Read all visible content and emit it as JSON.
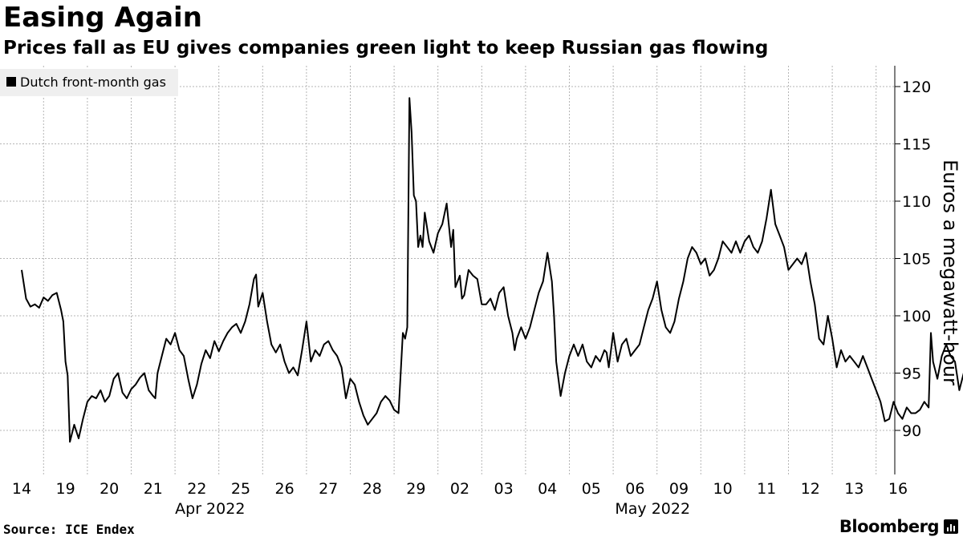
{
  "chart_data": {
    "type": "line",
    "title": "Easing Again",
    "subtitle": "Prices fall as EU gives companies green light to keep Russian gas flowing",
    "ylabel": "Euros a megawatt-hour",
    "ylim": [
      87,
      122
    ],
    "yticks": [
      90,
      95,
      100,
      105,
      110,
      115,
      120
    ],
    "grid": true,
    "legend_position": "top-left",
    "day_labels": [
      "14",
      "19",
      "20",
      "21",
      "22",
      "25",
      "26",
      "27",
      "28",
      "29",
      "02",
      "03",
      "04",
      "05",
      "06",
      "09",
      "10",
      "11",
      "12",
      "13",
      "16"
    ],
    "month_labels": [
      "Apr 2022",
      "May 2022"
    ],
    "series": [
      {
        "name": "Dutch front-month gas",
        "color": "#000000",
        "points": [
          [
            0.0,
            104.0
          ],
          [
            0.1,
            101.5
          ],
          [
            0.2,
            100.8
          ],
          [
            0.3,
            101.0
          ],
          [
            0.4,
            100.7
          ],
          [
            0.5,
            101.6
          ],
          [
            0.6,
            101.3
          ],
          [
            0.7,
            101.8
          ],
          [
            0.8,
            102.0
          ],
          [
            0.9,
            100.5
          ],
          [
            0.95,
            99.5
          ],
          [
            1.0,
            96.0
          ],
          [
            1.05,
            94.8
          ],
          [
            1.1,
            89.0
          ],
          [
            1.2,
            90.5
          ],
          [
            1.3,
            89.3
          ],
          [
            1.4,
            91.0
          ],
          [
            1.5,
            92.5
          ],
          [
            1.6,
            93.0
          ],
          [
            1.7,
            92.8
          ],
          [
            1.8,
            93.5
          ],
          [
            1.9,
            92.5
          ],
          [
            2.0,
            93.0
          ],
          [
            2.1,
            94.5
          ],
          [
            2.2,
            95.0
          ],
          [
            2.3,
            93.3
          ],
          [
            2.4,
            92.8
          ],
          [
            2.5,
            93.6
          ],
          [
            2.6,
            94.0
          ],
          [
            2.7,
            94.6
          ],
          [
            2.8,
            95.0
          ],
          [
            2.9,
            93.5
          ],
          [
            3.0,
            93.0
          ],
          [
            3.05,
            92.8
          ],
          [
            3.1,
            95.0
          ],
          [
            3.2,
            96.5
          ],
          [
            3.3,
            98.0
          ],
          [
            3.4,
            97.5
          ],
          [
            3.5,
            98.5
          ],
          [
            3.6,
            97.0
          ],
          [
            3.7,
            96.5
          ],
          [
            3.8,
            94.5
          ],
          [
            3.9,
            92.8
          ],
          [
            4.0,
            94.0
          ],
          [
            4.1,
            95.8
          ],
          [
            4.2,
            97.0
          ],
          [
            4.3,
            96.3
          ],
          [
            4.4,
            97.8
          ],
          [
            4.5,
            96.9
          ],
          [
            4.6,
            97.8
          ],
          [
            4.7,
            98.5
          ],
          [
            4.8,
            99.0
          ],
          [
            4.9,
            99.3
          ],
          [
            5.0,
            98.5
          ],
          [
            5.1,
            99.5
          ],
          [
            5.2,
            101.0
          ],
          [
            5.3,
            103.2
          ],
          [
            5.35,
            103.6
          ],
          [
            5.4,
            100.8
          ],
          [
            5.5,
            102.0
          ],
          [
            5.6,
            99.5
          ],
          [
            5.7,
            97.5
          ],
          [
            5.8,
            96.8
          ],
          [
            5.9,
            97.5
          ],
          [
            6.0,
            96.0
          ],
          [
            6.1,
            95.0
          ],
          [
            6.2,
            95.5
          ],
          [
            6.3,
            94.8
          ],
          [
            6.4,
            97.0
          ],
          [
            6.5,
            99.5
          ],
          [
            6.6,
            96.0
          ],
          [
            6.7,
            97.0
          ],
          [
            6.8,
            96.5
          ],
          [
            6.9,
            97.5
          ],
          [
            7.0,
            97.8
          ],
          [
            7.1,
            97.0
          ],
          [
            7.2,
            96.5
          ],
          [
            7.3,
            95.5
          ],
          [
            7.4,
            92.8
          ],
          [
            7.5,
            94.5
          ],
          [
            7.6,
            94.0
          ],
          [
            7.7,
            92.5
          ],
          [
            7.8,
            91.3
          ],
          [
            7.9,
            90.5
          ],
          [
            8.0,
            91.0
          ],
          [
            8.1,
            91.5
          ],
          [
            8.2,
            92.5
          ],
          [
            8.3,
            93.0
          ],
          [
            8.4,
            92.6
          ],
          [
            8.5,
            91.8
          ],
          [
            8.6,
            91.5
          ],
          [
            8.7,
            98.5
          ],
          [
            8.75,
            98.0
          ],
          [
            8.8,
            99.0
          ],
          [
            8.85,
            119.0
          ],
          [
            8.9,
            116.0
          ],
          [
            8.95,
            110.5
          ],
          [
            9.0,
            110.0
          ],
          [
            9.05,
            106.0
          ],
          [
            9.1,
            107.0
          ],
          [
            9.15,
            106.0
          ],
          [
            9.2,
            109.0
          ],
          [
            9.3,
            106.5
          ],
          [
            9.4,
            105.5
          ],
          [
            9.5,
            107.2
          ],
          [
            9.6,
            108.0
          ],
          [
            9.7,
            109.8
          ],
          [
            9.8,
            106.0
          ],
          [
            9.85,
            107.5
          ],
          [
            9.9,
            102.5
          ],
          [
            10.0,
            103.5
          ],
          [
            10.05,
            101.5
          ],
          [
            10.1,
            101.8
          ],
          [
            10.2,
            104.0
          ],
          [
            10.3,
            103.5
          ],
          [
            10.4,
            103.2
          ],
          [
            10.5,
            101.0
          ],
          [
            10.6,
            101.0
          ],
          [
            10.7,
            101.5
          ],
          [
            10.8,
            100.5
          ],
          [
            10.9,
            102.0
          ],
          [
            11.0,
            102.5
          ],
          [
            11.1,
            100.0
          ],
          [
            11.2,
            98.5
          ],
          [
            11.25,
            97.0
          ],
          [
            11.3,
            98.0
          ],
          [
            11.4,
            99.0
          ],
          [
            11.5,
            98.0
          ],
          [
            11.6,
            99.0
          ],
          [
            11.7,
            100.5
          ],
          [
            11.8,
            102.0
          ],
          [
            11.9,
            103.0
          ],
          [
            12.0,
            105.5
          ],
          [
            12.1,
            103.0
          ],
          [
            12.15,
            100.0
          ],
          [
            12.2,
            96.0
          ],
          [
            12.3,
            93.0
          ],
          [
            12.4,
            95.0
          ],
          [
            12.5,
            96.5
          ],
          [
            12.6,
            97.5
          ],
          [
            12.7,
            96.5
          ],
          [
            12.8,
            97.5
          ],
          [
            12.9,
            96.0
          ],
          [
            13.0,
            95.5
          ],
          [
            13.1,
            96.5
          ],
          [
            13.2,
            96.0
          ],
          [
            13.3,
            97.0
          ],
          [
            13.35,
            96.8
          ],
          [
            13.4,
            95.5
          ],
          [
            13.5,
            98.5
          ],
          [
            13.6,
            96.0
          ],
          [
            13.7,
            97.5
          ],
          [
            13.8,
            98.0
          ],
          [
            13.9,
            96.5
          ],
          [
            14.0,
            97.0
          ],
          [
            14.1,
            97.5
          ],
          [
            14.2,
            99.0
          ],
          [
            14.3,
            100.5
          ],
          [
            14.4,
            101.5
          ],
          [
            14.5,
            103.0
          ],
          [
            14.6,
            100.5
          ],
          [
            14.7,
            99.0
          ],
          [
            14.8,
            98.5
          ],
          [
            14.9,
            99.5
          ],
          [
            15.0,
            101.5
          ],
          [
            15.1,
            103.0
          ],
          [
            15.2,
            105.0
          ],
          [
            15.3,
            106.0
          ],
          [
            15.4,
            105.5
          ],
          [
            15.5,
            104.5
          ],
          [
            15.6,
            105.0
          ],
          [
            15.7,
            103.5
          ],
          [
            15.8,
            104.0
          ],
          [
            15.9,
            105.0
          ],
          [
            16.0,
            106.5
          ],
          [
            16.1,
            106.0
          ],
          [
            16.2,
            105.5
          ],
          [
            16.3,
            106.5
          ],
          [
            16.4,
            105.5
          ],
          [
            16.5,
            106.5
          ],
          [
            16.6,
            107.0
          ],
          [
            16.7,
            106.0
          ],
          [
            16.8,
            105.5
          ],
          [
            16.9,
            106.5
          ],
          [
            17.0,
            108.5
          ],
          [
            17.1,
            111.0
          ],
          [
            17.2,
            108.0
          ],
          [
            17.3,
            107.0
          ],
          [
            17.4,
            106.0
          ],
          [
            17.5,
            104.0
          ],
          [
            17.6,
            104.5
          ],
          [
            17.7,
            105.0
          ],
          [
            17.8,
            104.5
          ],
          [
            17.9,
            105.5
          ],
          [
            18.0,
            103.0
          ],
          [
            18.1,
            101.0
          ],
          [
            18.2,
            98.0
          ],
          [
            18.3,
            97.5
          ],
          [
            18.4,
            100.0
          ],
          [
            18.5,
            98.0
          ],
          [
            18.6,
            95.5
          ],
          [
            18.7,
            97.0
          ],
          [
            18.8,
            96.0
          ],
          [
            18.9,
            96.5
          ],
          [
            19.0,
            96.0
          ],
          [
            19.1,
            95.5
          ],
          [
            19.2,
            96.5
          ],
          [
            19.3,
            95.5
          ],
          [
            19.4,
            94.5
          ],
          [
            19.5,
            93.5
          ],
          [
            19.6,
            92.5
          ],
          [
            19.7,
            90.8
          ],
          [
            19.8,
            91.0
          ],
          [
            19.9,
            92.5
          ],
          [
            20.0,
            91.5
          ],
          [
            20.1,
            91.0
          ],
          [
            20.2,
            92.0
          ],
          [
            20.3,
            91.5
          ],
          [
            20.4,
            91.5
          ],
          [
            20.5,
            91.8
          ],
          [
            20.6,
            92.5
          ],
          [
            20.7,
            92.0
          ],
          [
            20.75,
            98.5
          ],
          [
            20.8,
            96.0
          ],
          [
            20.9,
            94.5
          ],
          [
            21.0,
            96.5
          ],
          [
            21.1,
            97.5
          ],
          [
            21.2,
            96.5
          ],
          [
            21.3,
            96.0
          ],
          [
            21.4,
            93.5
          ],
          [
            21.5,
            95.0
          ],
          [
            21.6,
            94.5
          ],
          [
            21.7,
            94.0
          ],
          [
            21.8,
            93.5
          ],
          [
            21.9,
            94.5
          ],
          [
            22.0,
            95.5
          ],
          [
            22.1,
            94.5
          ],
          [
            22.2,
            95.0
          ],
          [
            22.3,
            93.5
          ],
          [
            22.4,
            94.5
          ],
          [
            22.5,
            97.0
          ],
          [
            22.6,
            96.0
          ],
          [
            22.7,
            94.0
          ],
          [
            22.8,
            95.5
          ],
          [
            22.9,
            97.0
          ],
          [
            23.0,
            96.0
          ],
          [
            23.05,
            94.0
          ],
          [
            23.1,
            100.5
          ],
          [
            23.2,
            103.0
          ],
          [
            23.3,
            105.0
          ],
          [
            23.4,
            104.5
          ],
          [
            23.5,
            106.0
          ],
          [
            23.6,
            108.0
          ],
          [
            23.7,
            105.5
          ],
          [
            23.8,
            114.8
          ],
          [
            23.9,
            111.5
          ],
          [
            24.0,
            106.5
          ],
          [
            24.1,
            105.0
          ],
          [
            24.2,
            103.5
          ],
          [
            24.3,
            105.5
          ],
          [
            24.4,
            104.5
          ],
          [
            24.5,
            104.0
          ],
          [
            24.6,
            106.0
          ],
          [
            24.7,
            105.0
          ],
          [
            24.8,
            104.5
          ],
          [
            24.9,
            101.5
          ],
          [
            25.0,
            101.0
          ],
          [
            25.1,
            101.5
          ],
          [
            25.2,
            102.5
          ],
          [
            25.3,
            100.5
          ],
          [
            25.4,
            101.0
          ],
          [
            25.5,
            102.0
          ],
          [
            25.6,
            99.0
          ],
          [
            25.7,
            99.5
          ],
          [
            25.8,
            97.0
          ],
          [
            25.9,
            96.5
          ],
          [
            26.0,
            95.0
          ],
          [
            26.1,
            94.0
          ],
          [
            26.2,
            95.5
          ],
          [
            26.3,
            96.5
          ],
          [
            26.4,
            95.0
          ],
          [
            26.5,
            92.5
          ],
          [
            26.6,
            93.5
          ],
          [
            26.7,
            93.5
          ],
          [
            26.8,
            93.5
          ],
          [
            26.9,
            94.0
          ],
          [
            27.0,
            95.0
          ],
          [
            27.1,
            95.0
          ],
          [
            27.2,
            96.0
          ],
          [
            27.3,
            93.5
          ],
          [
            27.4,
            94.5
          ],
          [
            27.5,
            92.5
          ]
        ]
      }
    ]
  }
}
